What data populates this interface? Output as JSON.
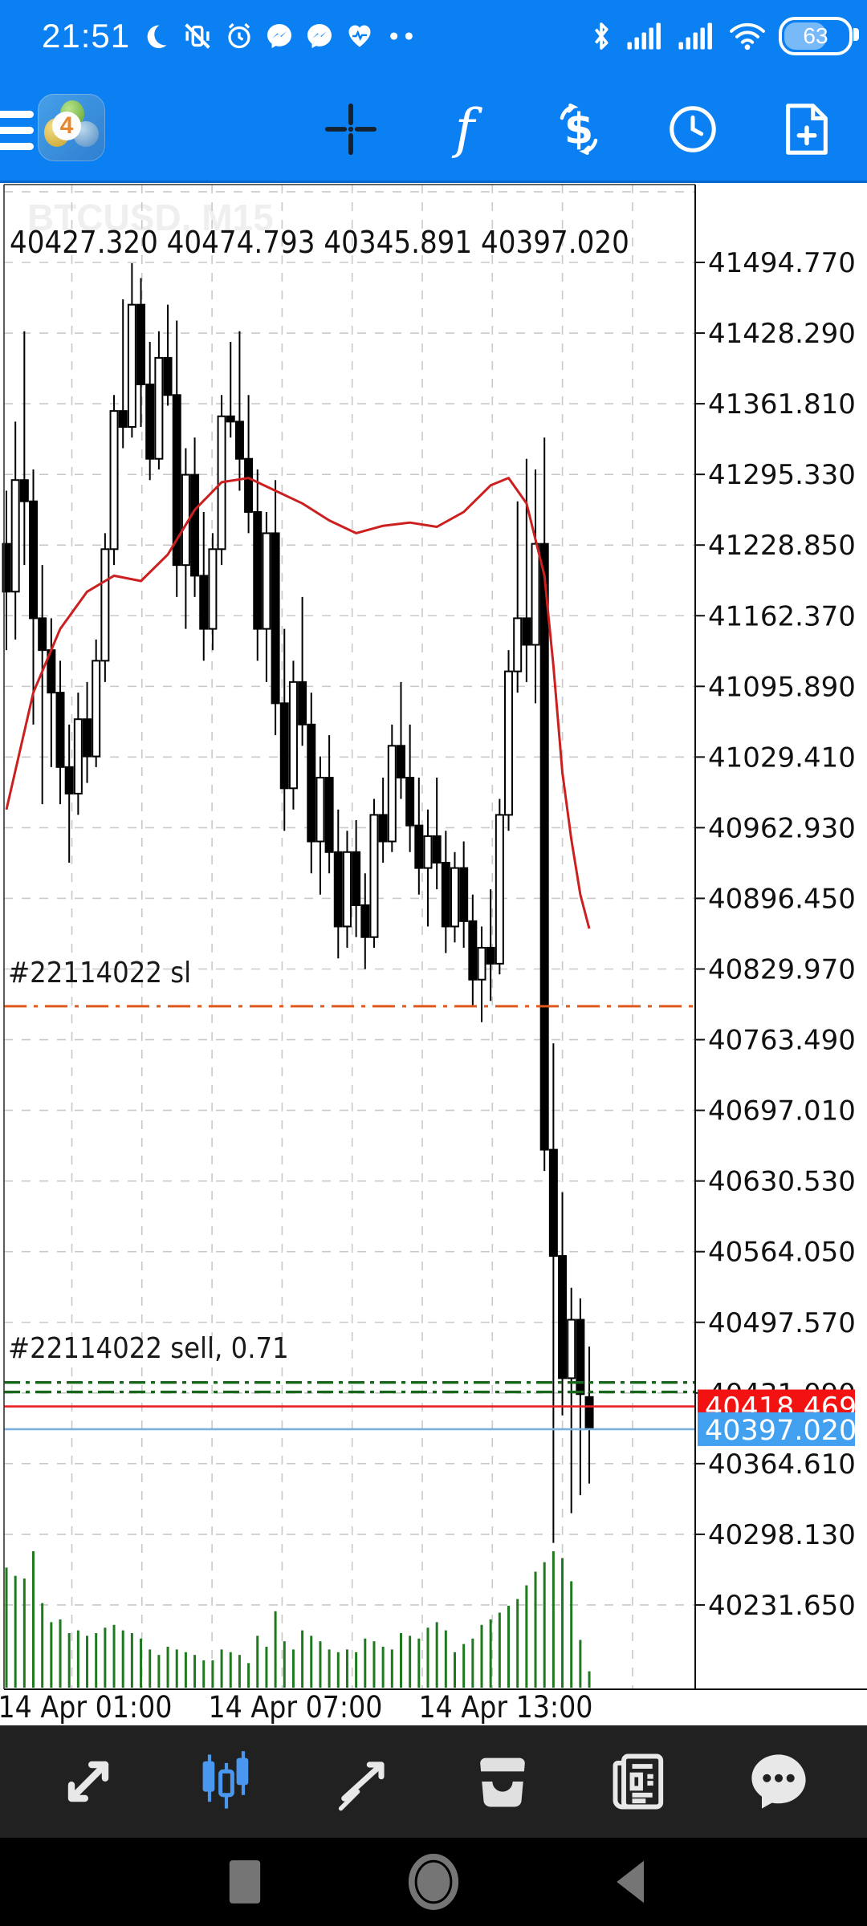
{
  "status_bar": {
    "time": "21:51",
    "battery_percent": "63",
    "left_icons": [
      "moon-icon",
      "vibrate-off-icon",
      "alarm-icon",
      "messenger-icon",
      "messenger-icon",
      "health-icon",
      "more-dots-icon"
    ],
    "right_icons": [
      "bluetooth-icon",
      "cell-signal-icon",
      "cell-signal-icon",
      "wifi-icon",
      "battery-icon"
    ]
  },
  "toolbar": {
    "icons": [
      "menu-icon",
      "mt4-app-icon",
      "crosshair-icon",
      "indicators-icon",
      "trade-icon",
      "history-icon",
      "new-order-icon"
    ]
  },
  "chart": {
    "watermark": "BTCUSD, M15",
    "ohlc_line": "40427.320 40474.793 40345.891 40397.020",
    "sl_label": "#22114022 sl",
    "sell_label": "#22114022 sell, 0.71"
  },
  "chart_data": {
    "type": "candlestick",
    "symbol": "BTCUSD",
    "timeframe": "M15",
    "title": "BTCUSD M15 candlestick chart with volume, moving average and open sell position #22114022",
    "ohlc_display": {
      "open": 40427.32,
      "high": 40474.793,
      "low": 40345.891,
      "close": 40397.02
    },
    "ask": 40418.469,
    "bid": 40397.02,
    "ask_label": "40418.469",
    "bid_label": "40397.020",
    "order_lines": {
      "sl_price": 40795.0,
      "sell_open_price": 40441.0,
      "sell_aux_price": 40432.0,
      "sl_label": "#22114022 sl",
      "sell_label": "#22114022 sell, 0.71"
    },
    "price_ticks": [
      "41494.770",
      "41428.290",
      "41361.810",
      "41295.330",
      "41228.850",
      "41162.370",
      "41095.890",
      "41029.410",
      "40962.930",
      "40896.450",
      "40829.970",
      "40763.490",
      "40697.010",
      "40630.530",
      "40564.050",
      "40497.570",
      "40431.090",
      "40364.610",
      "40298.130",
      "40231.650"
    ],
    "x_tick_labels": [
      "14 Apr 01:00",
      "14 Apr 07:00",
      "14 Apr 13:00"
    ],
    "ylim": [
      40160,
      41565
    ],
    "grid": true,
    "candles": [
      [
        41230,
        41280,
        41130,
        41185
      ],
      [
        41185,
        41345,
        41140,
        41290
      ],
      [
        41290,
        41430,
        41210,
        41270
      ],
      [
        41270,
        41300,
        41060,
        41160
      ],
      [
        41160,
        41210,
        40985,
        41130
      ],
      [
        41130,
        41160,
        41020,
        41090
      ],
      [
        41090,
        41120,
        40985,
        41020
      ],
      [
        41020,
        41060,
        40930,
        40995
      ],
      [
        40995,
        41090,
        40975,
        41065
      ],
      [
        41065,
        41100,
        41005,
        41030
      ],
      [
        41030,
        41140,
        41020,
        41120
      ],
      [
        41120,
        41240,
        41100,
        41225
      ],
      [
        41225,
        41370,
        41210,
        41355
      ],
      [
        41355,
        41460,
        41320,
        41340
      ],
      [
        41340,
        41494,
        41330,
        41455
      ],
      [
        41455,
        41480,
        41340,
        41380
      ],
      [
        41380,
        41420,
        41290,
        41310
      ],
      [
        41310,
        41430,
        41300,
        41405
      ],
      [
        41405,
        41455,
        41360,
        41370
      ],
      [
        41370,
        41440,
        41180,
        41210
      ],
      [
        41210,
        41320,
        41150,
        41295
      ],
      [
        41295,
        41330,
        41180,
        41200
      ],
      [
        41200,
        41260,
        41120,
        41150
      ],
      [
        41150,
        41240,
        41130,
        41225
      ],
      [
        41225,
        41370,
        41210,
        41350
      ],
      [
        41350,
        41420,
        41330,
        41345
      ],
      [
        41345,
        41430,
        41280,
        41310
      ],
      [
        41310,
        41370,
        41240,
        41260
      ],
      [
        41260,
        41300,
        41120,
        41150
      ],
      [
        41150,
        41260,
        41100,
        41240
      ],
      [
        41240,
        41290,
        41050,
        41080
      ],
      [
        41080,
        41150,
        40960,
        41000
      ],
      [
        41000,
        41120,
        40980,
        41100
      ],
      [
        41100,
        41180,
        41040,
        41060
      ],
      [
        41060,
        41090,
        40920,
        40950
      ],
      [
        40950,
        41030,
        40900,
        41010
      ],
      [
        41010,
        41050,
        40920,
        40940
      ],
      [
        40940,
        40980,
        40840,
        40870
      ],
      [
        40870,
        40960,
        40850,
        40940
      ],
      [
        40940,
        40970,
        40860,
        40890
      ],
      [
        40890,
        40920,
        40830,
        40860
      ],
      [
        40860,
        40990,
        40850,
        40975
      ],
      [
        40975,
        41010,
        40930,
        40950
      ],
      [
        40950,
        41060,
        40940,
        41040
      ],
      [
        41040,
        41100,
        40990,
        41010
      ],
      [
        41010,
        41060,
        40940,
        40965
      ],
      [
        40965,
        41010,
        40900,
        40925
      ],
      [
        40925,
        40980,
        40870,
        40955
      ],
      [
        40955,
        41010,
        40905,
        40930
      ],
      [
        40930,
        40960,
        40845,
        40870
      ],
      [
        40870,
        40940,
        40855,
        40925
      ],
      [
        40925,
        40950,
        40850,
        40875
      ],
      [
        40875,
        40900,
        40795,
        40820
      ],
      [
        40820,
        40870,
        40780,
        40850
      ],
      [
        40850,
        40905,
        40800,
        40835
      ],
      [
        40835,
        40990,
        40825,
        40975
      ],
      [
        40975,
        41130,
        40960,
        41110
      ],
      [
        41110,
        41270,
        41090,
        41160
      ],
      [
        41160,
        41310,
        41100,
        41135
      ],
      [
        41135,
        41300,
        41080,
        41230
      ],
      [
        41230,
        41330,
        40640,
        40660
      ],
      [
        40660,
        40760,
        40290,
        40560
      ],
      [
        40560,
        40620,
        40410,
        40445
      ],
      [
        40445,
        40530,
        40318,
        40500
      ],
      [
        40500,
        40520,
        40335,
        40430
      ],
      [
        40427.32,
        40474.793,
        40345.891,
        40397.02
      ]
    ],
    "volumes": [
      88,
      82,
      80,
      100,
      62,
      48,
      50,
      40,
      42,
      38,
      40,
      44,
      46,
      42,
      40,
      36,
      28,
      24,
      30,
      28,
      26,
      24,
      20,
      20,
      28,
      26,
      24,
      18,
      38,
      30,
      56,
      34,
      28,
      42,
      38,
      34,
      28,
      26,
      28,
      26,
      36,
      34,
      30,
      28,
      40,
      38,
      36,
      44,
      48,
      42,
      26,
      32,
      36,
      46,
      50,
      55,
      60,
      65,
      75,
      85,
      92,
      100,
      95,
      78,
      35,
      12
    ],
    "ma_points": [
      [
        0,
        40980
      ],
      [
        3,
        41090
      ],
      [
        6,
        41150
      ],
      [
        9,
        41185
      ],
      [
        12,
        41200
      ],
      [
        15,
        41195
      ],
      [
        18,
        41220
      ],
      [
        21,
        41262
      ],
      [
        24,
        41288
      ],
      [
        27,
        41292
      ],
      [
        30,
        41280
      ],
      [
        33,
        41268
      ],
      [
        36,
        41252
      ],
      [
        39,
        41240
      ],
      [
        42,
        41247
      ],
      [
        45,
        41250
      ],
      [
        48,
        41246
      ],
      [
        51,
        41260
      ],
      [
        54,
        41285
      ],
      [
        56,
        41292
      ],
      [
        58,
        41268
      ],
      [
        60,
        41200
      ],
      [
        61,
        41115
      ],
      [
        62,
        41015
      ],
      [
        63,
        40952
      ],
      [
        64,
        40900
      ],
      [
        65,
        40868
      ]
    ]
  },
  "bottom_nav": {
    "items": [
      "quotes",
      "charts",
      "trade",
      "history",
      "news",
      "messages"
    ],
    "active": "charts"
  },
  "android_nav": {
    "icons": [
      "recents-square",
      "home-circle",
      "back-triangle"
    ]
  },
  "colors": {
    "top_blue": "#0a80f2",
    "bear": "#000000",
    "bull": "#ffffff",
    "volume_green": "#1f7a1f",
    "ma_red": "#cc2020",
    "sl_line": "#e0581c",
    "sell_line": "#17661a",
    "ask_line": "#e82020",
    "bid_line": "#7ab0de",
    "ask_label_bg": "#f31212",
    "bid_label_bg": "#42a0f0",
    "grid": "#c9c9c9",
    "bottom_bar_bg": "#212121",
    "active_tab": "#4a97f0",
    "nav_icon": "#757575"
  }
}
